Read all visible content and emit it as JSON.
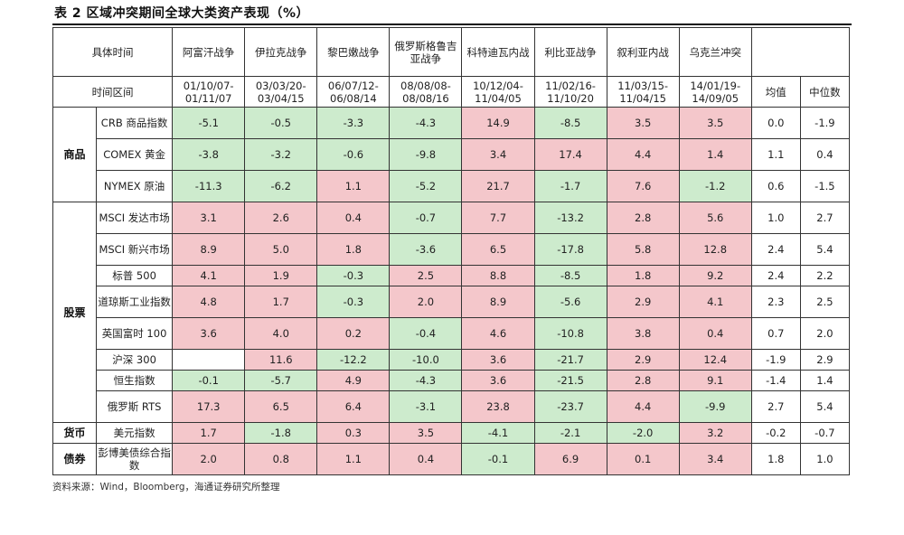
{
  "title": "表 2  区域冲突期间全球大类资产表现（%）",
  "header": {
    "row1_label": "具体时间",
    "row2_label": "时间区间",
    "events": [
      {
        "name": "阿富汗战争",
        "period": "01/10/07-01/11/07"
      },
      {
        "name": "伊拉克战争",
        "period": "03/03/20-03/04/15"
      },
      {
        "name": "黎巴嫩战争",
        "period": "06/07/12-06/08/14"
      },
      {
        "name": "俄罗斯格鲁吉亚战争",
        "period": "08/08/08-08/08/16"
      },
      {
        "name": "科特迪瓦内战",
        "period": "10/12/04-11/04/05"
      },
      {
        "name": "利比亚战争",
        "period": "11/02/16-11/10/20"
      },
      {
        "name": "叙利亚内战",
        "period": "11/03/15-11/04/15"
      },
      {
        "name": "乌克兰冲突",
        "period": "14/01/19-14/09/05"
      }
    ],
    "mean_label": "均值",
    "median_label": "中位数"
  },
  "groups": [
    {
      "name": "商品",
      "rows": [
        {
          "label": "CRB 商品指数",
          "values": [
            "-5.1",
            "-0.5",
            "-3.3",
            "-4.3",
            "14.9",
            "-8.5",
            "3.5",
            "3.5"
          ],
          "mean": "0.0",
          "median": "-1.9"
        },
        {
          "label": "COMEX 黄金",
          "values": [
            "-3.8",
            "-3.2",
            "-0.6",
            "-9.8",
            "3.4",
            "17.4",
            "4.4",
            "1.4"
          ],
          "mean": "1.1",
          "median": "0.4"
        },
        {
          "label": "NYMEX 原油",
          "values": [
            "-11.3",
            "-6.2",
            "1.1",
            "-5.2",
            "21.7",
            "-1.7",
            "7.6",
            "-1.2"
          ],
          "mean": "0.6",
          "median": "-1.5"
        }
      ]
    },
    {
      "name": "股票",
      "rows": [
        {
          "label": "MSCI 发达市场",
          "values": [
            "3.1",
            "2.6",
            "0.4",
            "-0.7",
            "7.7",
            "-13.2",
            "2.8",
            "5.6"
          ],
          "mean": "1.0",
          "median": "2.7"
        },
        {
          "label": "MSCI 新兴市场",
          "values": [
            "8.9",
            "5.0",
            "1.8",
            "-3.6",
            "6.5",
            "-17.8",
            "5.8",
            "12.8"
          ],
          "mean": "2.4",
          "median": "5.4"
        },
        {
          "label": "标普 500",
          "values": [
            "4.1",
            "1.9",
            "-0.3",
            "2.5",
            "8.8",
            "-8.5",
            "1.8",
            "9.2"
          ],
          "mean": "2.4",
          "median": "2.2"
        },
        {
          "label": "道琼斯工业指数",
          "values": [
            "4.8",
            "1.7",
            "-0.3",
            "2.0",
            "8.9",
            "-5.6",
            "2.9",
            "4.1"
          ],
          "mean": "2.3",
          "median": "2.5"
        },
        {
          "label": "英国富时 100",
          "values": [
            "3.6",
            "4.0",
            "0.2",
            "-0.4",
            "4.6",
            "-10.8",
            "3.8",
            "0.4"
          ],
          "mean": "0.7",
          "median": "2.0"
        },
        {
          "label": "沪深 300",
          "values": [
            "",
            "11.6",
            "-12.2",
            "-10.0",
            "3.6",
            "-21.7",
            "2.9",
            "12.4"
          ],
          "mean": "-1.9",
          "median": "2.9"
        },
        {
          "label": "恒生指数",
          "values": [
            "-0.1",
            "-5.7",
            "4.9",
            "-4.3",
            "3.6",
            "-21.5",
            "2.8",
            "9.1"
          ],
          "mean": "-1.4",
          "median": "1.4"
        },
        {
          "label": "俄罗斯 RTS",
          "values": [
            "17.3",
            "6.5",
            "6.4",
            "-3.1",
            "23.8",
            "-23.7",
            "4.4",
            "-9.9"
          ],
          "mean": "2.7",
          "median": "5.4"
        }
      ]
    },
    {
      "name": "货币",
      "rows": [
        {
          "label": "美元指数",
          "values": [
            "1.7",
            "-1.8",
            "0.3",
            "3.5",
            "-4.1",
            "-2.1",
            "-2.0",
            "3.2"
          ],
          "mean": "-0.2",
          "median": "-0.7"
        }
      ]
    },
    {
      "name": "债券",
      "rows": [
        {
          "label": "彭博美债综合指数",
          "values": [
            "2.0",
            "0.8",
            "1.1",
            "0.4",
            "-0.1",
            "6.9",
            "0.1",
            "3.4"
          ],
          "mean": "1.8",
          "median": "1.0"
        }
      ]
    }
  ],
  "source": "资料来源：Wind，Bloomberg，海通证券研究所整理",
  "colors": {
    "positive": "#f4c7cb",
    "negative": "#cdebcd",
    "border": "#333333"
  }
}
